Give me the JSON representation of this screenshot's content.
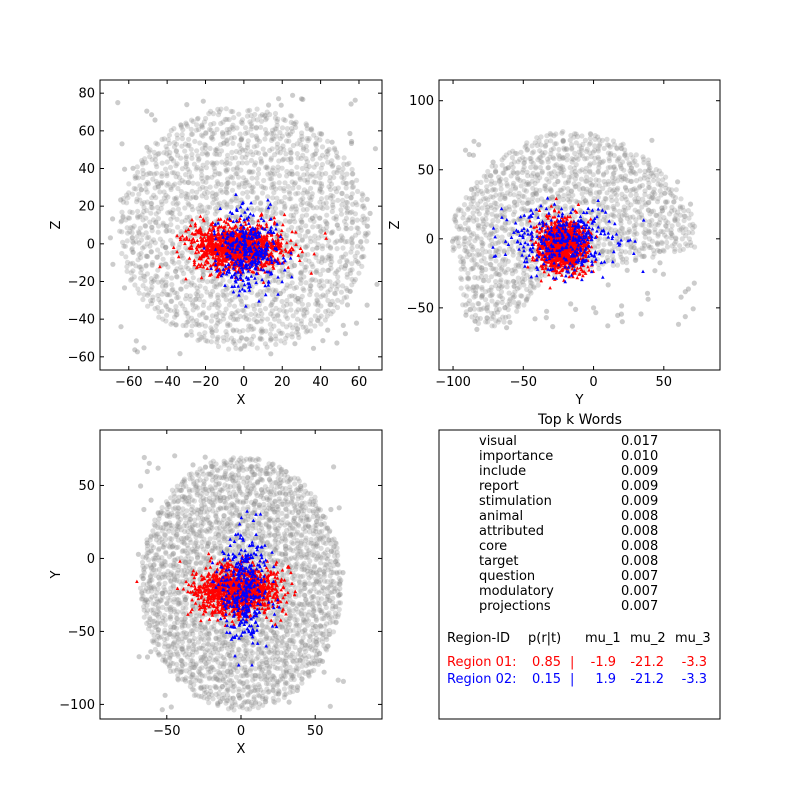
{
  "colors": {
    "background": "#808080",
    "region1": "#ff0000",
    "region2": "#0000ff",
    "axes": "#000000"
  },
  "chart_data": [
    {
      "type": "scatter",
      "id": "coronal",
      "xlabel": "X",
      "ylabel": "Z",
      "xlim": [
        -75,
        72
      ],
      "ylim": [
        -67,
        87
      ],
      "xticks": [
        -60,
        -40,
        -20,
        0,
        20,
        40,
        60
      ],
      "yticks": [
        -60,
        -40,
        -20,
        0,
        20,
        40,
        60,
        80
      ],
      "background_cloud": {
        "shape": "ellipse",
        "cx": 0,
        "cy": 8,
        "rx": 65,
        "ry": 65,
        "notch_top": 3,
        "extent_x": [
          -70,
          70
        ],
        "extent_y": [
          -60,
          78
        ]
      },
      "series": [
        {
          "marker": "triangle",
          "color": "#ff0000",
          "center": [
            -3,
            -2
          ],
          "spread": [
            12,
            6
          ],
          "count": 1200
        },
        {
          "marker": "triangle",
          "color": "#0000ff",
          "center": [
            2,
            -4
          ],
          "spread": [
            8,
            10
          ],
          "count": 350
        }
      ]
    },
    {
      "type": "scatter",
      "id": "sagittal",
      "xlabel": "Y",
      "ylabel": "Z",
      "xlim": [
        -110,
        90
      ],
      "ylim": [
        -95,
        115
      ],
      "xticks": [
        -100,
        -50,
        0,
        50
      ],
      "yticks": [
        -50,
        0,
        50,
        100
      ],
      "background_cloud": {
        "shape": "brain-side",
        "extent_x": [
          -100,
          72
        ],
        "extent_y": [
          -65,
          78
        ]
      },
      "series": [
        {
          "marker": "triangle",
          "color": "#ff0000",
          "center": [
            -22,
            -5
          ],
          "spread": [
            8,
            9
          ],
          "count": 1200
        },
        {
          "marker": "triangle",
          "color": "#0000ff",
          "center": [
            -20,
            -2
          ],
          "spread": [
            20,
            12
          ],
          "count": 350
        }
      ]
    },
    {
      "type": "scatter",
      "id": "axial",
      "xlabel": "X",
      "ylabel": "Y",
      "xlim": [
        -95,
        95
      ],
      "ylim": [
        -110,
        88
      ],
      "xticks": [
        -50,
        0,
        50
      ],
      "yticks": [
        -100,
        -50,
        0,
        50
      ],
      "background_cloud": {
        "shape": "ellipse",
        "cx": 0,
        "cy": -17,
        "rx": 68,
        "ry": 87,
        "notch_top": 3,
        "extent_x": [
          -70,
          70
        ],
        "extent_y": [
          -105,
          70
        ]
      },
      "series": [
        {
          "marker": "triangle",
          "color": "#ff0000",
          "center": [
            -3,
            -22
          ],
          "spread": [
            14,
            8
          ],
          "count": 1200
        },
        {
          "marker": "triangle",
          "color": "#0000ff",
          "center": [
            2,
            -20
          ],
          "spread": [
            8,
            20
          ],
          "count": 350
        }
      ]
    }
  ],
  "words_panel": {
    "title": "Top k Words",
    "words": [
      {
        "word": "visual",
        "value": "0.017"
      },
      {
        "word": "importance",
        "value": "0.010"
      },
      {
        "word": "include",
        "value": "0.009"
      },
      {
        "word": "report",
        "value": "0.009"
      },
      {
        "word": "stimulation",
        "value": "0.009"
      },
      {
        "word": "animal",
        "value": "0.008"
      },
      {
        "word": "attributed",
        "value": "0.008"
      },
      {
        "word": "core",
        "value": "0.008"
      },
      {
        "word": "target",
        "value": "0.008"
      },
      {
        "word": "question",
        "value": "0.007"
      },
      {
        "word": "modulatory",
        "value": "0.007"
      },
      {
        "word": "projections",
        "value": "0.007"
      }
    ],
    "region_header": {
      "id": "Region-ID",
      "p": "p(r|t)",
      "mu1": "mu_1",
      "mu2": "mu_2",
      "mu3": "mu_3"
    },
    "regions": [
      {
        "id": "Region 01:",
        "p": "0.85",
        "sep": "|",
        "mu1": "-1.9",
        "mu2": "-21.2",
        "mu3": "-3.3",
        "color": "#ff0000"
      },
      {
        "id": "Region 02:",
        "p": "0.15",
        "sep": "|",
        "mu1": "1.9",
        "mu2": "-21.2",
        "mu3": "-3.3",
        "color": "#0000ff"
      }
    ]
  }
}
